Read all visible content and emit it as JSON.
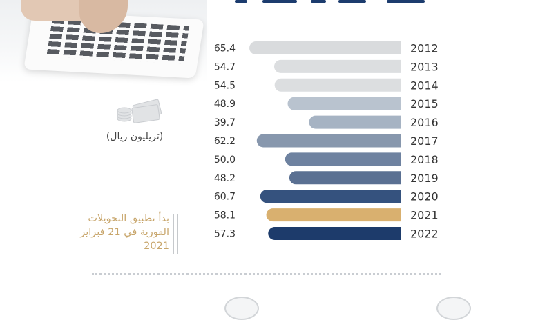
{
  "chart_data": {
    "type": "bar",
    "orientation": "horizontal",
    "categories": [
      "2012",
      "2013",
      "2014",
      "2015",
      "2016",
      "2017",
      "2018",
      "2019",
      "2020",
      "2021",
      "2022"
    ],
    "values": [
      65.4,
      54.7,
      54.5,
      48.9,
      39.7,
      62.2,
      50.0,
      48.2,
      60.7,
      58.1,
      57.3
    ],
    "value_labels": [
      "65.4",
      "54.7",
      "54.5",
      "48.9",
      "39.7",
      "62.2",
      "50.0",
      "48.2",
      "60.7",
      "58.1",
      "57.3"
    ],
    "bar_colors": [
      "#d9dbdd",
      "#dcdee0",
      "#dcdee0",
      "#b9c3cf",
      "#a6b3c3",
      "#8797ad",
      "#6e82a0",
      "#5a7092",
      "#35527e",
      "#d9b06f",
      "#1d3b6b"
    ],
    "unit": "(تريليون ريال)",
    "xlim": [
      0,
      70
    ],
    "grid": false,
    "annotation": {
      "lines": [
        "بدأ تطبيق التحويلات",
        "الفورية في 21 فبراير",
        "2021"
      ],
      "color": "#c8a66c"
    }
  }
}
